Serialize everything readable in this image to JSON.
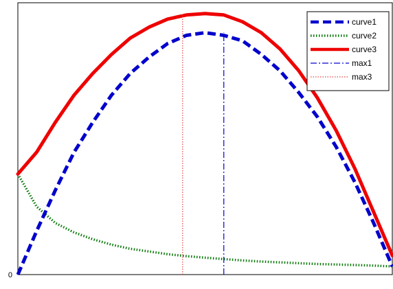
{
  "chart_data": {
    "type": "line",
    "title": "",
    "xlabel": "",
    "ylabel": "",
    "xlim": [
      0,
      1
    ],
    "ylim": [
      0,
      1
    ],
    "y_tick_labels": [
      {
        "value": 0,
        "label": "0"
      }
    ],
    "grid": false,
    "legend": "top-right",
    "series": [
      {
        "name": "curve1",
        "color": "#0000cc",
        "style": "dashed",
        "x": [
          0,
          0.05,
          0.1,
          0.15,
          0.2,
          0.25,
          0.3,
          0.35,
          0.4,
          0.45,
          0.5,
          0.55,
          0.6,
          0.65,
          0.7,
          0.75,
          0.8,
          0.85,
          0.9,
          0.95,
          1
        ],
        "y": [
          0,
          0.16,
          0.31,
          0.45,
          0.56,
          0.66,
          0.74,
          0.8,
          0.85,
          0.88,
          0.89,
          0.88,
          0.86,
          0.81,
          0.75,
          0.67,
          0.58,
          0.47,
          0.34,
          0.19,
          0.03
        ]
      },
      {
        "name": "curve2",
        "color": "#007700",
        "style": "dotted",
        "x": [
          0,
          0.05,
          0.1,
          0.15,
          0.2,
          0.25,
          0.3,
          0.35,
          0.4,
          0.45,
          0.5,
          0.55,
          0.6,
          0.65,
          0.7,
          0.75,
          0.8,
          0.85,
          0.9,
          0.95,
          1
        ],
        "y": [
          0.37,
          0.25,
          0.19,
          0.155,
          0.13,
          0.11,
          0.095,
          0.085,
          0.075,
          0.068,
          0.062,
          0.057,
          0.052,
          0.048,
          0.045,
          0.042,
          0.039,
          0.037,
          0.035,
          0.033,
          0.03
        ]
      },
      {
        "name": "curve3",
        "color": "#ee0000",
        "style": "solid",
        "x": [
          0,
          0.05,
          0.1,
          0.15,
          0.2,
          0.25,
          0.3,
          0.35,
          0.4,
          0.45,
          0.5,
          0.55,
          0.6,
          0.65,
          0.7,
          0.75,
          0.8,
          0.85,
          0.9,
          0.95,
          1
        ],
        "y": [
          0.37,
          0.45,
          0.56,
          0.66,
          0.74,
          0.81,
          0.87,
          0.91,
          0.94,
          0.955,
          0.96,
          0.955,
          0.93,
          0.89,
          0.83,
          0.75,
          0.65,
          0.53,
          0.39,
          0.23,
          0.07
        ]
      }
    ],
    "vlines": [
      {
        "name": "max1",
        "color": "#0000cc",
        "style": "dashdot",
        "x": 0.55
      },
      {
        "name": "max3",
        "color": "#dd4444",
        "style": "dotted",
        "x": 0.44
      }
    ]
  }
}
